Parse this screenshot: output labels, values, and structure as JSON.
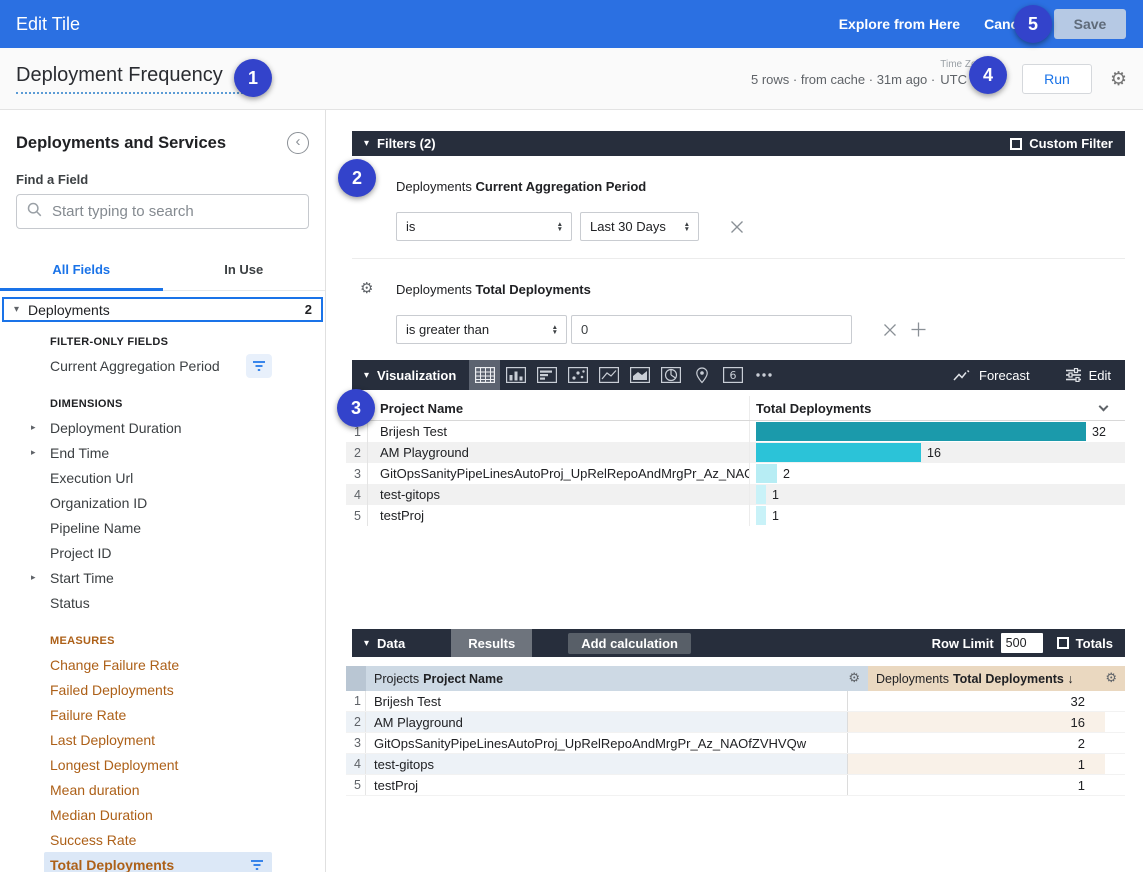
{
  "topbar": {
    "title": "Edit Tile",
    "explore": "Explore from Here",
    "cancel": "Cancel",
    "save": "Save"
  },
  "title_row": {
    "title": "Deployment Frequency",
    "status": "5 rows · from cache · 31m ago ·",
    "timezone_label": "Time Zone",
    "timezone": "UTC",
    "run": "Run"
  },
  "sidebar": {
    "heading": "Deployments and Services",
    "find_label": "Find a Field",
    "search_placeholder": "Start typing to search",
    "tabs": [
      "All Fields",
      "In Use"
    ],
    "group": {
      "label": "Deployments",
      "count": "2"
    },
    "filter_only": {
      "header": "FILTER-ONLY FIELDS",
      "items": [
        {
          "label": "Current Aggregation Period",
          "filtered": true
        }
      ]
    },
    "dimensions": {
      "header": "DIMENSIONS",
      "items": [
        {
          "label": "Deployment Duration",
          "expandable": true
        },
        {
          "label": "End Time",
          "expandable": true
        },
        {
          "label": "Execution Url"
        },
        {
          "label": "Organization ID"
        },
        {
          "label": "Pipeline Name"
        },
        {
          "label": "Project ID"
        },
        {
          "label": "Start Time",
          "expandable": true
        },
        {
          "label": "Status"
        }
      ]
    },
    "measures": {
      "header": "MEASURES",
      "items": [
        {
          "label": "Change Failure Rate"
        },
        {
          "label": "Failed Deployments"
        },
        {
          "label": "Failure Rate"
        },
        {
          "label": "Last Deployment"
        },
        {
          "label": "Longest Deployment"
        },
        {
          "label": "Mean duration"
        },
        {
          "label": "Median Duration"
        },
        {
          "label": "Success Rate"
        },
        {
          "label": "Total Deployments",
          "selected": true,
          "filtered": true
        }
      ]
    }
  },
  "filters": {
    "header": "Filters (2)",
    "custom_filter": "Custom Filter",
    "rows": [
      {
        "scope": "Deployments",
        "field": "Current Aggregation Period",
        "operator": "is",
        "value": "Last 30 Days"
      },
      {
        "scope": "Deployments",
        "field": "Total Deployments",
        "operator": "is greater than",
        "value": "0"
      }
    ]
  },
  "visualization": {
    "header": "Visualization",
    "icons": [
      {
        "name": "table",
        "selected": true
      },
      {
        "name": "column-chart"
      },
      {
        "name": "bar-chart"
      },
      {
        "name": "scatter"
      },
      {
        "name": "line-chart"
      },
      {
        "name": "area-chart"
      },
      {
        "name": "pie-chart"
      },
      {
        "name": "map-pin"
      },
      {
        "name": "single-value",
        "label": "6"
      },
      {
        "name": "more"
      }
    ],
    "forecast": "Forecast",
    "edit": "Edit"
  },
  "chart_data": {
    "type": "bar",
    "orientation": "horizontal",
    "title": "",
    "categories": [
      "Brijesh Test",
      "AM Playground",
      "GitOpsSanityPipeLinesAutoProj_UpRelRepoAndMrgPr_Az_NAOfZVHVQw",
      "test-gitops",
      "testProj"
    ],
    "values": [
      32,
      16,
      2,
      1,
      1
    ],
    "series": [
      {
        "name": "Total Deployments",
        "values": [
          32,
          16,
          2,
          1,
          1
        ]
      }
    ],
    "xlabel": "",
    "ylabel": "",
    "xlim": [
      0,
      32
    ],
    "value_labels": true,
    "bar_colors": [
      "#1b9aab",
      "#2bc3d8",
      "#b7edf4",
      "#c9f2f8",
      "#c9f2f8"
    ],
    "legend": false
  },
  "viz_table": {
    "columns": [
      "Project Name",
      "Total Deployments"
    ]
  },
  "data_panel": {
    "header": "Data",
    "results_tab": "Results",
    "add_calculation": "Add calculation",
    "row_limit_label": "Row Limit",
    "row_limit_value": "500",
    "totals_label": "Totals",
    "columns": [
      {
        "scope": "Projects",
        "field": "Project Name"
      },
      {
        "scope": "Deployments",
        "field": "Total Deployments",
        "sort_arrow": "↓"
      }
    ],
    "rows": [
      {
        "name": "Brijesh Test",
        "value": "32"
      },
      {
        "name": "AM Playground",
        "value": "16"
      },
      {
        "name": "GitOpsSanityPipeLinesAutoProj_UpRelRepoAndMrgPr_Az_NAOfZVHVQw",
        "value": "2"
      },
      {
        "name": "test-gitops",
        "value": "1"
      },
      {
        "name": "testProj",
        "value": "1"
      }
    ]
  },
  "badges": [
    "1",
    "2",
    "3",
    "4",
    "5"
  ],
  "colors": {
    "topbar": "#2b70e2",
    "accent": "#1a73e8",
    "dark_bar": "#272e3c",
    "measure_text": "#ad6018",
    "badge": "#3343cb",
    "selected_field_bg": "#dce8f7",
    "data_header_dimension": "#cdd9e4",
    "data_header_measure": "#ead8c0",
    "stripe_dimension": "#edf2f7",
    "stripe_measure": "#f9f1e8"
  }
}
